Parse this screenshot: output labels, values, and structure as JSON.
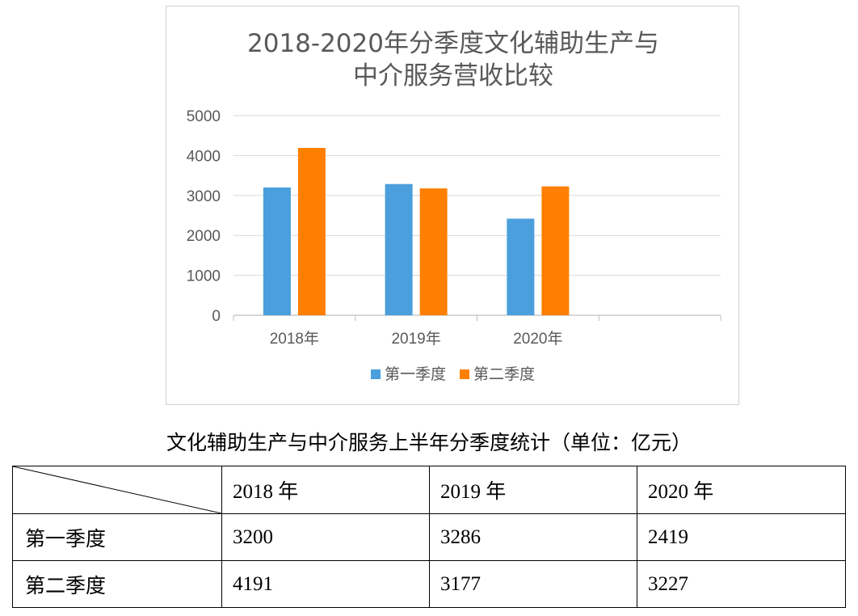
{
  "chart_data": {
    "type": "bar",
    "title_lines": [
      "2018-2020年分季度文化辅助生产与",
      "中介服务营收比较"
    ],
    "categories": [
      "2018年",
      "2019年",
      "2020年"
    ],
    "series": [
      {
        "name": "第一季度",
        "values": [
          3200,
          3286,
          2419
        ],
        "color": "#4a9fdc"
      },
      {
        "name": "第二季度",
        "values": [
          4191,
          3177,
          3227
        ],
        "color": "#ff7f00"
      }
    ],
    "ylim": [
      0,
      5000
    ],
    "yticks": [
      "0",
      "1000",
      "2000",
      "3000",
      "4000",
      "5000"
    ],
    "grid": true,
    "legend": "bottom"
  },
  "table": {
    "caption": "文化辅助生产与中介服务上半年分季度统计（单位：亿元）",
    "headers": [
      "",
      "2018 年",
      "2019 年",
      "2020 年"
    ],
    "rows": [
      {
        "label": "第一季度",
        "values": [
          "3200",
          "3286",
          "2419"
        ]
      },
      {
        "label": "第二季度",
        "values": [
          "4191",
          "3177",
          "3227"
        ]
      }
    ]
  }
}
